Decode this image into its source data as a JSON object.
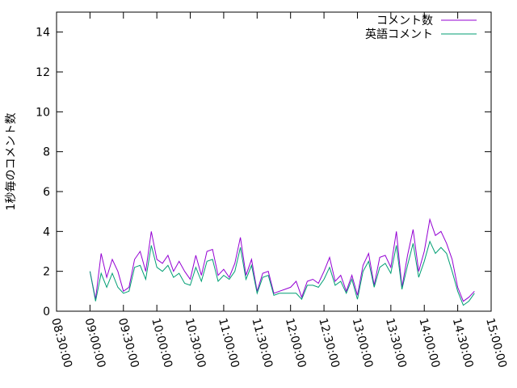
{
  "chart_data": {
    "type": "line",
    "ylabel": "1秒毎のコメント数",
    "legend": "top-right",
    "x": [
      "09:00:00",
      "09:05:00",
      "09:10:00",
      "09:15:00",
      "09:20:00",
      "09:25:00",
      "09:30:00",
      "09:35:00",
      "09:40:00",
      "09:45:00",
      "09:50:00",
      "09:55:00",
      "10:00:00",
      "10:05:00",
      "10:10:00",
      "10:15:00",
      "10:20:00",
      "10:25:00",
      "10:30:00",
      "10:35:00",
      "10:40:00",
      "10:45:00",
      "10:50:00",
      "10:55:00",
      "11:00:00",
      "11:05:00",
      "11:10:00",
      "11:15:00",
      "11:20:00",
      "11:25:00",
      "11:30:00",
      "11:35:00",
      "11:40:00",
      "11:45:00",
      "11:50:00",
      "11:55:00",
      "12:00:00",
      "12:05:00",
      "12:10:00",
      "12:15:00",
      "12:20:00",
      "12:25:00",
      "12:30:00",
      "12:35:00",
      "12:40:00",
      "12:45:00",
      "12:50:00",
      "12:55:00",
      "13:00:00",
      "13:05:00",
      "13:10:00",
      "13:15:00",
      "13:20:00",
      "13:25:00",
      "13:30:00",
      "13:35:00",
      "13:40:00",
      "13:45:00",
      "13:50:00",
      "13:55:00",
      "14:00:00",
      "14:05:00",
      "14:10:00",
      "14:15:00",
      "14:20:00",
      "14:25:00",
      "14:30:00",
      "14:35:00",
      "14:40:00",
      "14:45:00"
    ],
    "series": [
      {
        "name": "コメント数",
        "color": "#9400d3",
        "values": [
          2.0,
          0.6,
          2.9,
          1.7,
          2.6,
          2.0,
          1.0,
          1.2,
          2.6,
          3.0,
          2.0,
          4.0,
          2.6,
          2.4,
          2.8,
          2.0,
          2.5,
          2.0,
          1.6,
          2.8,
          1.8,
          3.0,
          3.1,
          1.8,
          2.1,
          1.7,
          2.4,
          3.7,
          1.8,
          2.6,
          1.0,
          1.9,
          2.0,
          0.9,
          1.0,
          1.1,
          1.2,
          1.5,
          0.7,
          1.5,
          1.6,
          1.4,
          2.0,
          2.7,
          1.5,
          1.8,
          1.0,
          1.8,
          0.8,
          2.3,
          2.9,
          1.3,
          2.7,
          2.8,
          2.2,
          4.0,
          1.2,
          2.8,
          4.1,
          2.0,
          3.0,
          4.6,
          3.8,
          4.0,
          3.4,
          2.6,
          1.2,
          0.5,
          0.7,
          1.0
        ]
      },
      {
        "name": "英語コメント",
        "color": "#009e73",
        "values": [
          2.0,
          0.5,
          1.9,
          1.2,
          1.9,
          1.2,
          0.9,
          1.0,
          2.2,
          2.3,
          1.6,
          3.3,
          2.2,
          2.0,
          2.3,
          1.7,
          1.9,
          1.4,
          1.3,
          2.2,
          1.5,
          2.5,
          2.6,
          1.5,
          1.8,
          1.6,
          2.0,
          3.2,
          1.6,
          2.3,
          0.9,
          1.7,
          1.8,
          0.8,
          0.9,
          0.9,
          0.9,
          0.9,
          0.6,
          1.3,
          1.3,
          1.2,
          1.6,
          2.2,
          1.3,
          1.5,
          0.9,
          1.6,
          0.6,
          2.0,
          2.5,
          1.2,
          2.2,
          2.4,
          1.9,
          3.3,
          1.1,
          2.3,
          3.4,
          1.7,
          2.5,
          3.5,
          2.9,
          3.2,
          2.9,
          2.0,
          1.0,
          0.3,
          0.5,
          0.9
        ]
      }
    ],
    "xlim": [
      "08:30:00",
      "15:00:00"
    ],
    "xticks": [
      "08:30:00",
      "09:00:00",
      "09:30:00",
      "10:00:00",
      "10:30:00",
      "11:00:00",
      "11:30:00",
      "12:00:00",
      "12:30:00",
      "13:00:00",
      "13:30:00",
      "14:00:00",
      "14:30:00",
      "15:00:00"
    ],
    "ylim": [
      0,
      15
    ],
    "yticks": [
      0,
      2,
      4,
      6,
      8,
      10,
      12,
      14
    ]
  }
}
